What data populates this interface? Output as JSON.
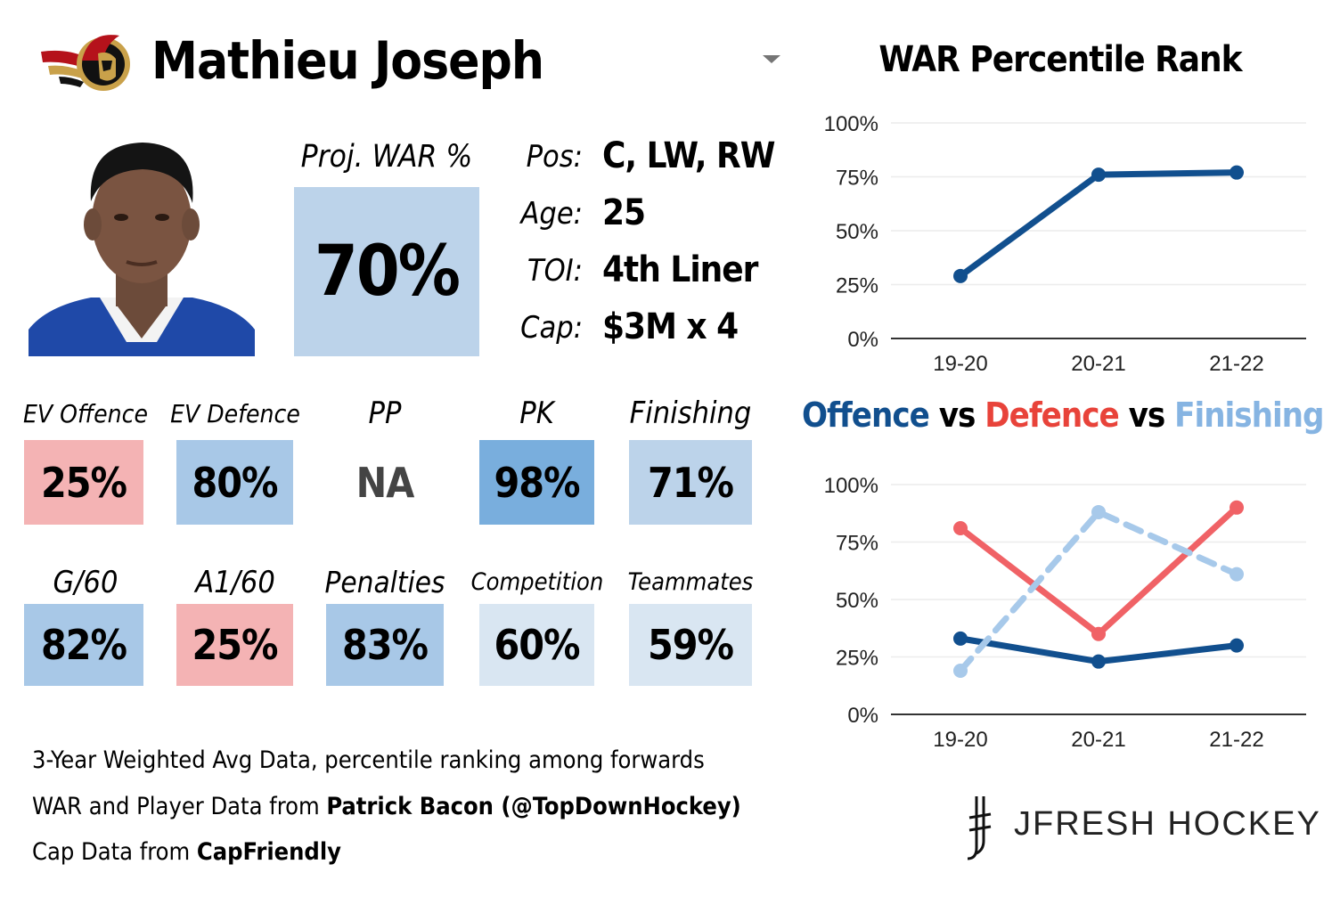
{
  "player": {
    "name": "Mathieu Joseph",
    "proj_war_label": "Proj. WAR %",
    "proj_war_value": "70%",
    "info": [
      {
        "label": "Pos:",
        "value": "C, LW, RW"
      },
      {
        "label": "Age:",
        "value": "25"
      },
      {
        "label": "TOI:",
        "value": "4th Liner"
      },
      {
        "label": "Cap:",
        "value": "$3M x 4"
      }
    ]
  },
  "colors": {
    "red_tile": "#f4b3b4",
    "blue_light": "#d9e6f2",
    "blue_mid": "#bcd3ea",
    "blue_med": "#a8c8e7",
    "blue_dark": "#79aedd",
    "offence": "#114f8e",
    "defence": "#f06266",
    "finishing": "#a7c9ea"
  },
  "stats_row1": [
    {
      "label": "EV Offence",
      "value": "25%",
      "color": "#f4b3b4"
    },
    {
      "label": "EV Defence",
      "value": "80%",
      "color": "#a8c8e7"
    },
    {
      "label": "PP",
      "value": "NA",
      "color": "#ffffff"
    },
    {
      "label": "PK",
      "value": "98%",
      "color": "#79aedd"
    },
    {
      "label": "Finishing",
      "value": "71%",
      "color": "#bcd3ea"
    }
  ],
  "stats_row2": [
    {
      "label": "G/60",
      "value": "82%",
      "color": "#a8c8e7"
    },
    {
      "label": "A1/60",
      "value": "25%",
      "color": "#f4b3b4"
    },
    {
      "label": "Penalties",
      "value": "83%",
      "color": "#a8c8e7"
    },
    {
      "label": "Competition",
      "value": "60%",
      "color": "#d9e6f2"
    },
    {
      "label": "Teammates",
      "value": "59%",
      "color": "#d9e6f2"
    }
  ],
  "footer": {
    "line1": "3-Year Weighted Avg Data, percentile ranking among forwards",
    "line2_prefix": "WAR and Player Data from ",
    "line2_bold": "Patrick Bacon (@TopDownHockey)",
    "line3_prefix": "Cap Data from ",
    "line3_bold": "CapFriendly"
  },
  "brand": "JFRESH HOCKEY",
  "chart_titles": {
    "war": "WAR Percentile Rank",
    "offence": "Offence",
    "vs": "vs",
    "defence": "Defence",
    "finishing": "Finishing"
  },
  "chart_data": [
    {
      "type": "line",
      "title": "WAR Percentile Rank",
      "categories": [
        "19-20",
        "20-21",
        "21-22"
      ],
      "ylim": [
        0,
        100
      ],
      "yticks": [
        "0%",
        "25%",
        "50%",
        "75%",
        "100%"
      ],
      "grid": true,
      "series": [
        {
          "values": [
            29,
            76,
            77
          ],
          "color": "#114f8e",
          "dashed": false
        }
      ]
    },
    {
      "type": "line",
      "title": "Offence vs Defence vs Finishing",
      "categories": [
        "19-20",
        "20-21",
        "21-22"
      ],
      "ylim": [
        0,
        100
      ],
      "yticks": [
        "0%",
        "25%",
        "50%",
        "75%",
        "100%"
      ],
      "grid": true,
      "series": [
        {
          "name": "Offence",
          "values": [
            33,
            23,
            30
          ],
          "color": "#114f8e",
          "dashed": false
        },
        {
          "name": "Defence",
          "values": [
            81,
            35,
            90
          ],
          "color": "#f06266",
          "dashed": false
        },
        {
          "name": "Finishing",
          "values": [
            19,
            88,
            61
          ],
          "color": "#a7c9ea",
          "dashed": true
        }
      ]
    }
  ]
}
